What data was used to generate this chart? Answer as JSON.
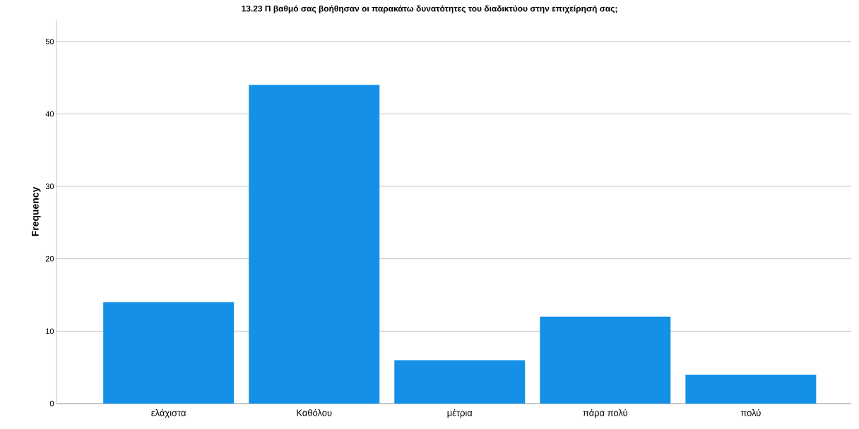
{
  "chart_data": {
    "type": "bar",
    "title": "13.23 Π βαθμό σας βοήθησαν οι παρακάτω δυνατότητες του διαδικτύου στην επιχείρησή σας;",
    "categories": [
      "ελάχιστα",
      "Καθόλου",
      "μέτρια",
      "πάρα πολύ",
      "πολύ"
    ],
    "values": [
      14,
      44,
      6,
      12,
      4
    ],
    "color": "#1491e6",
    "ylabel": "Frequency",
    "ylim": [
      0,
      53
    ],
    "yticks": [
      0,
      10,
      20,
      30,
      40,
      50
    ],
    "grid": "y"
  }
}
